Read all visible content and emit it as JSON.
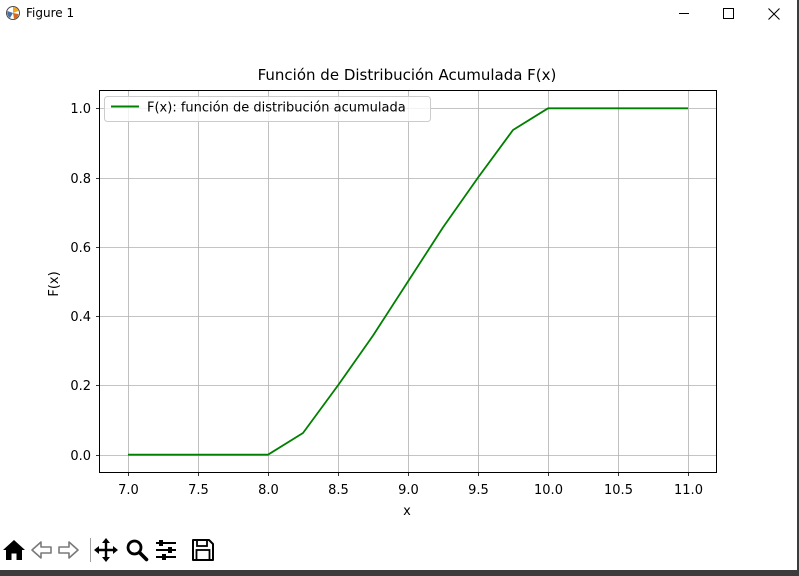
{
  "window": {
    "title": "Figure 1",
    "icon": "matplotlib-figure-icon",
    "controls": [
      "minimize-icon",
      "maximize-icon",
      "close-icon"
    ]
  },
  "toolbar": {
    "tools": [
      "home-icon",
      "back-arrow-icon",
      "forward-arrow-icon",
      "pan-move-icon",
      "zoom-magnifier-icon",
      "configure-subplots-icon",
      "save-floppy-icon"
    ]
  },
  "chart_data": {
    "type": "line",
    "title": "Función de Distribución Acumulada F(x)",
    "xlabel": "x",
    "ylabel": "F(x)",
    "xlim": [
      6.8,
      11.2
    ],
    "ylim": [
      -0.05,
      1.05
    ],
    "xticks": [
      "7.0",
      "7.5",
      "8.0",
      "8.5",
      "9.0",
      "9.5",
      "10.0",
      "10.5",
      "11.0"
    ],
    "yticks": [
      "0.0",
      "0.2",
      "0.4",
      "0.6",
      "0.8",
      "1.0"
    ],
    "grid": true,
    "legend_position": "top-left",
    "series": [
      {
        "name": "F(x): función de distribución acumulada",
        "color": "#008000",
        "x": [
          7.0,
          7.5,
          8.0,
          8.25,
          8.5,
          8.75,
          9.0,
          9.25,
          9.5,
          9.75,
          10.0,
          10.5,
          11.0
        ],
        "y": [
          0.0,
          0.0,
          0.0,
          0.0625,
          0.2,
          0.3438,
          0.5,
          0.6563,
          0.8,
          0.9375,
          1.0,
          1.0,
          1.0
        ]
      }
    ]
  }
}
